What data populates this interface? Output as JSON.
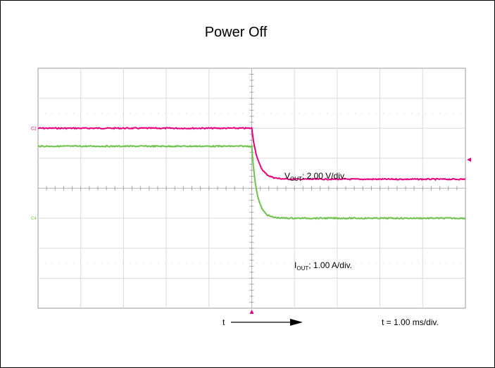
{
  "chart_data": {
    "type": "line",
    "title": "Power Off",
    "xlabel": "t",
    "x_units_per_div": "ms",
    "xlim": [
      -5.0,
      5.0
    ],
    "ylim_divs": [
      -4.0,
      4.0
    ],
    "grid": true,
    "series": [
      {
        "name": "VOUT",
        "channel": "C2",
        "color": "#e6007e",
        "scale_per_div": 2.0,
        "unit": "V",
        "initial_level_div": 2.0,
        "final_level_div": 0.3,
        "transition_start": 0.0,
        "time_constant": 0.15
      },
      {
        "name": "IOUT",
        "channel": "C4",
        "color": "#6cc24a",
        "scale_per_div": 1.0,
        "unit": "A",
        "initial_level_div": 1.4,
        "final_level_div": -1.0,
        "transition_start": 0.0,
        "time_constant": 0.12
      }
    ],
    "annotations": {
      "vout_label_main": "V",
      "vout_label_sub": "OUT",
      "vout_label_rest": "; 2.00 V/div.",
      "iout_label_main": "I",
      "iout_label_sub": "OUT",
      "iout_label_rest": "; 1.00 A/div.",
      "time_arrow_label": "t",
      "time_scale": "t = 1.00 ms/div."
    }
  }
}
